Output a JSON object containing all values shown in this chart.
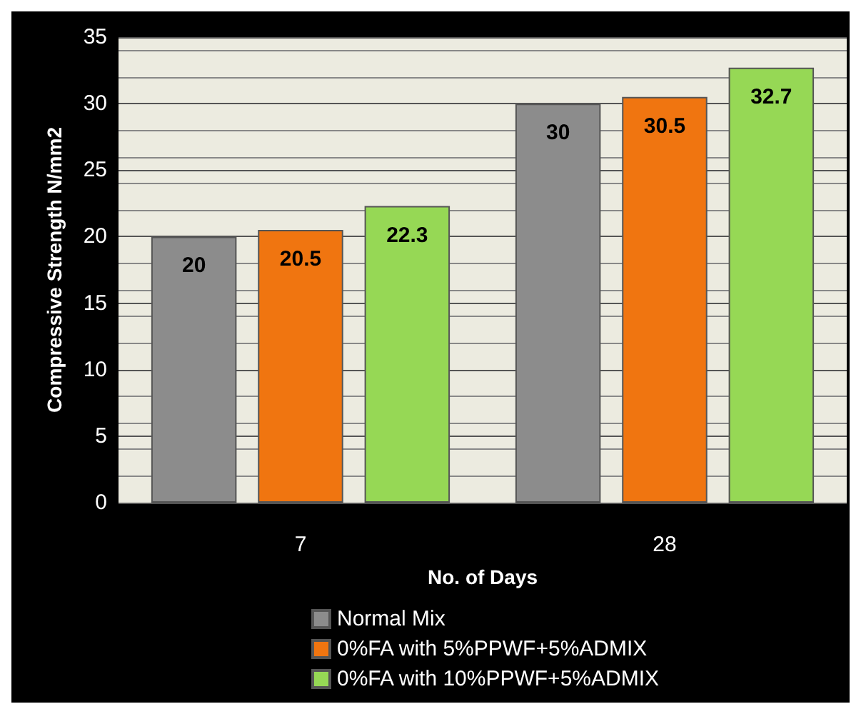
{
  "chart_data": {
    "type": "bar",
    "xlabel": "No. of Days",
    "ylabel": "Compressive Strength N/mm2",
    "categories": [
      "7",
      "28"
    ],
    "series": [
      {
        "name": "Normal Mix",
        "color": "#8c8c8c",
        "values": [
          20,
          30
        ]
      },
      {
        "name": "0%FA with 5%PPWF+5%ADMIX",
        "color": "#f07510",
        "values": [
          20.5,
          30.5
        ]
      },
      {
        "name": "0%FA with 10%PPWF+5%ADMIX",
        "color": "#96d855",
        "values": [
          22.3,
          32.7
        ]
      }
    ],
    "ylim": [
      0,
      35
    ],
    "yticks": [
      0,
      5,
      10,
      15,
      20,
      25,
      30,
      35
    ],
    "grid": "y",
    "legend": "bottom",
    "data_labels": true
  }
}
